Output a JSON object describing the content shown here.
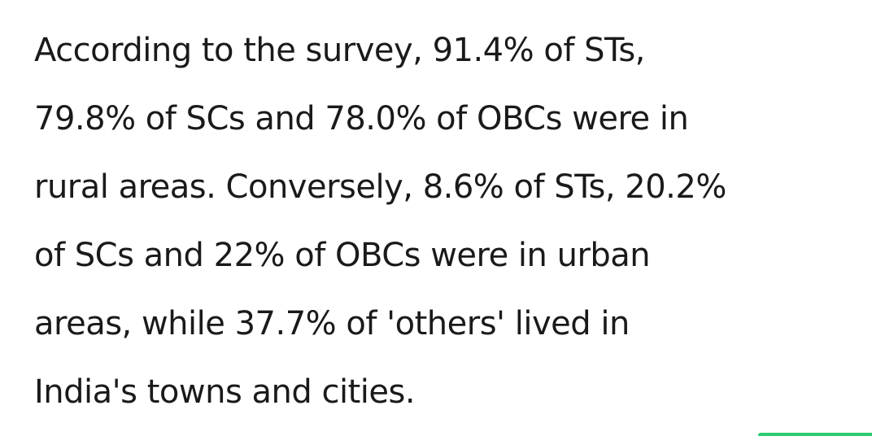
{
  "article": {
    "lines": [
      "According to the survey, 91.4% of STs,",
      "79.8% of SCs and 78.0% of OBCs were in",
      "rural areas. Conversely, 8.6% of STs, 20.2%",
      "of SCs and 22% of OBCs were in urban",
      "areas, while 37.7% of 'others' lived in",
      "India's towns and cities."
    ]
  },
  "colors": {
    "text": "#1a1a1a",
    "background": "#ffffff",
    "accent": "#2ecc71"
  }
}
